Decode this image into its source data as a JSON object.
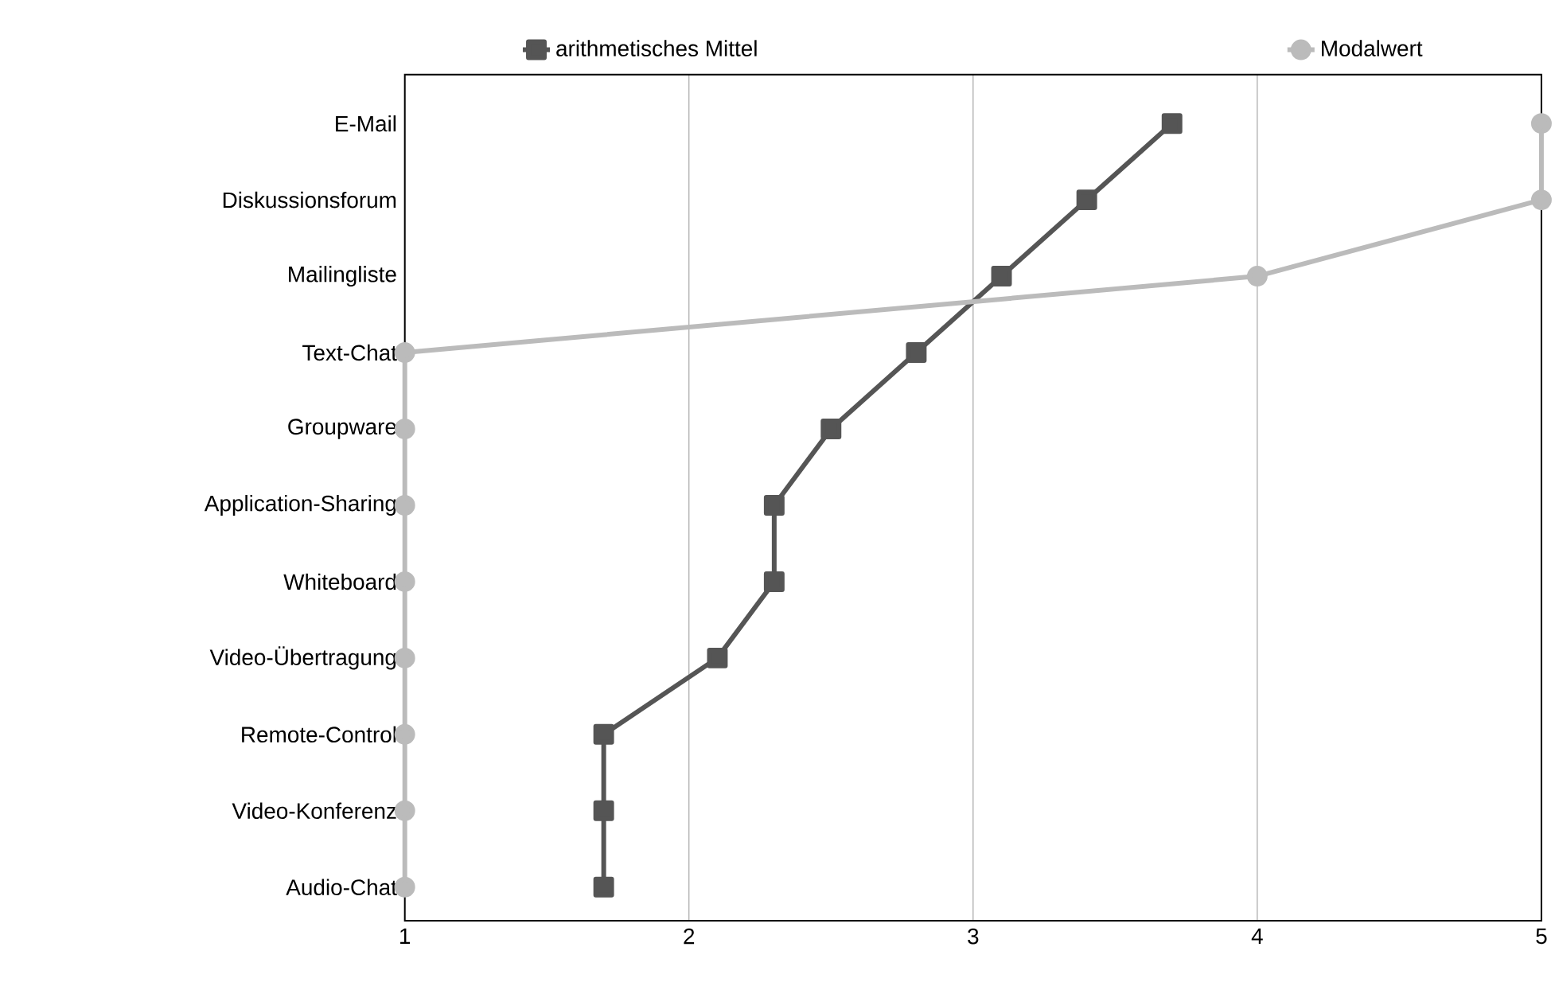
{
  "chart_data": {
    "type": "line",
    "orientation": "horizontal",
    "categories": [
      "E-Mail",
      "Diskussionsforum",
      "Mailingliste",
      "Text-Chat",
      "Groupware",
      "Application-Sharing",
      "Whiteboard",
      "Video-Übertragung",
      "Remote-Control",
      "Video-Konferenz",
      "Audio-Chat"
    ],
    "series": [
      {
        "name": "arithmetisches Mittel",
        "color": "#555555",
        "marker": "square",
        "values": [
          3.7,
          3.4,
          3.1,
          2.8,
          2.5,
          2.3,
          2.3,
          2.1,
          1.7,
          1.7,
          1.7
        ]
      },
      {
        "name": "Modalwert",
        "color": "#bbbbbb",
        "marker": "circle",
        "values": [
          5,
          5,
          4,
          1,
          1,
          1,
          1,
          1,
          1,
          1,
          1
        ]
      }
    ],
    "xlim": [
      1,
      5
    ],
    "xticks": [
      1,
      2,
      3,
      4,
      5
    ],
    "grid": "x",
    "legend": "top",
    "line_style": "solid"
  }
}
